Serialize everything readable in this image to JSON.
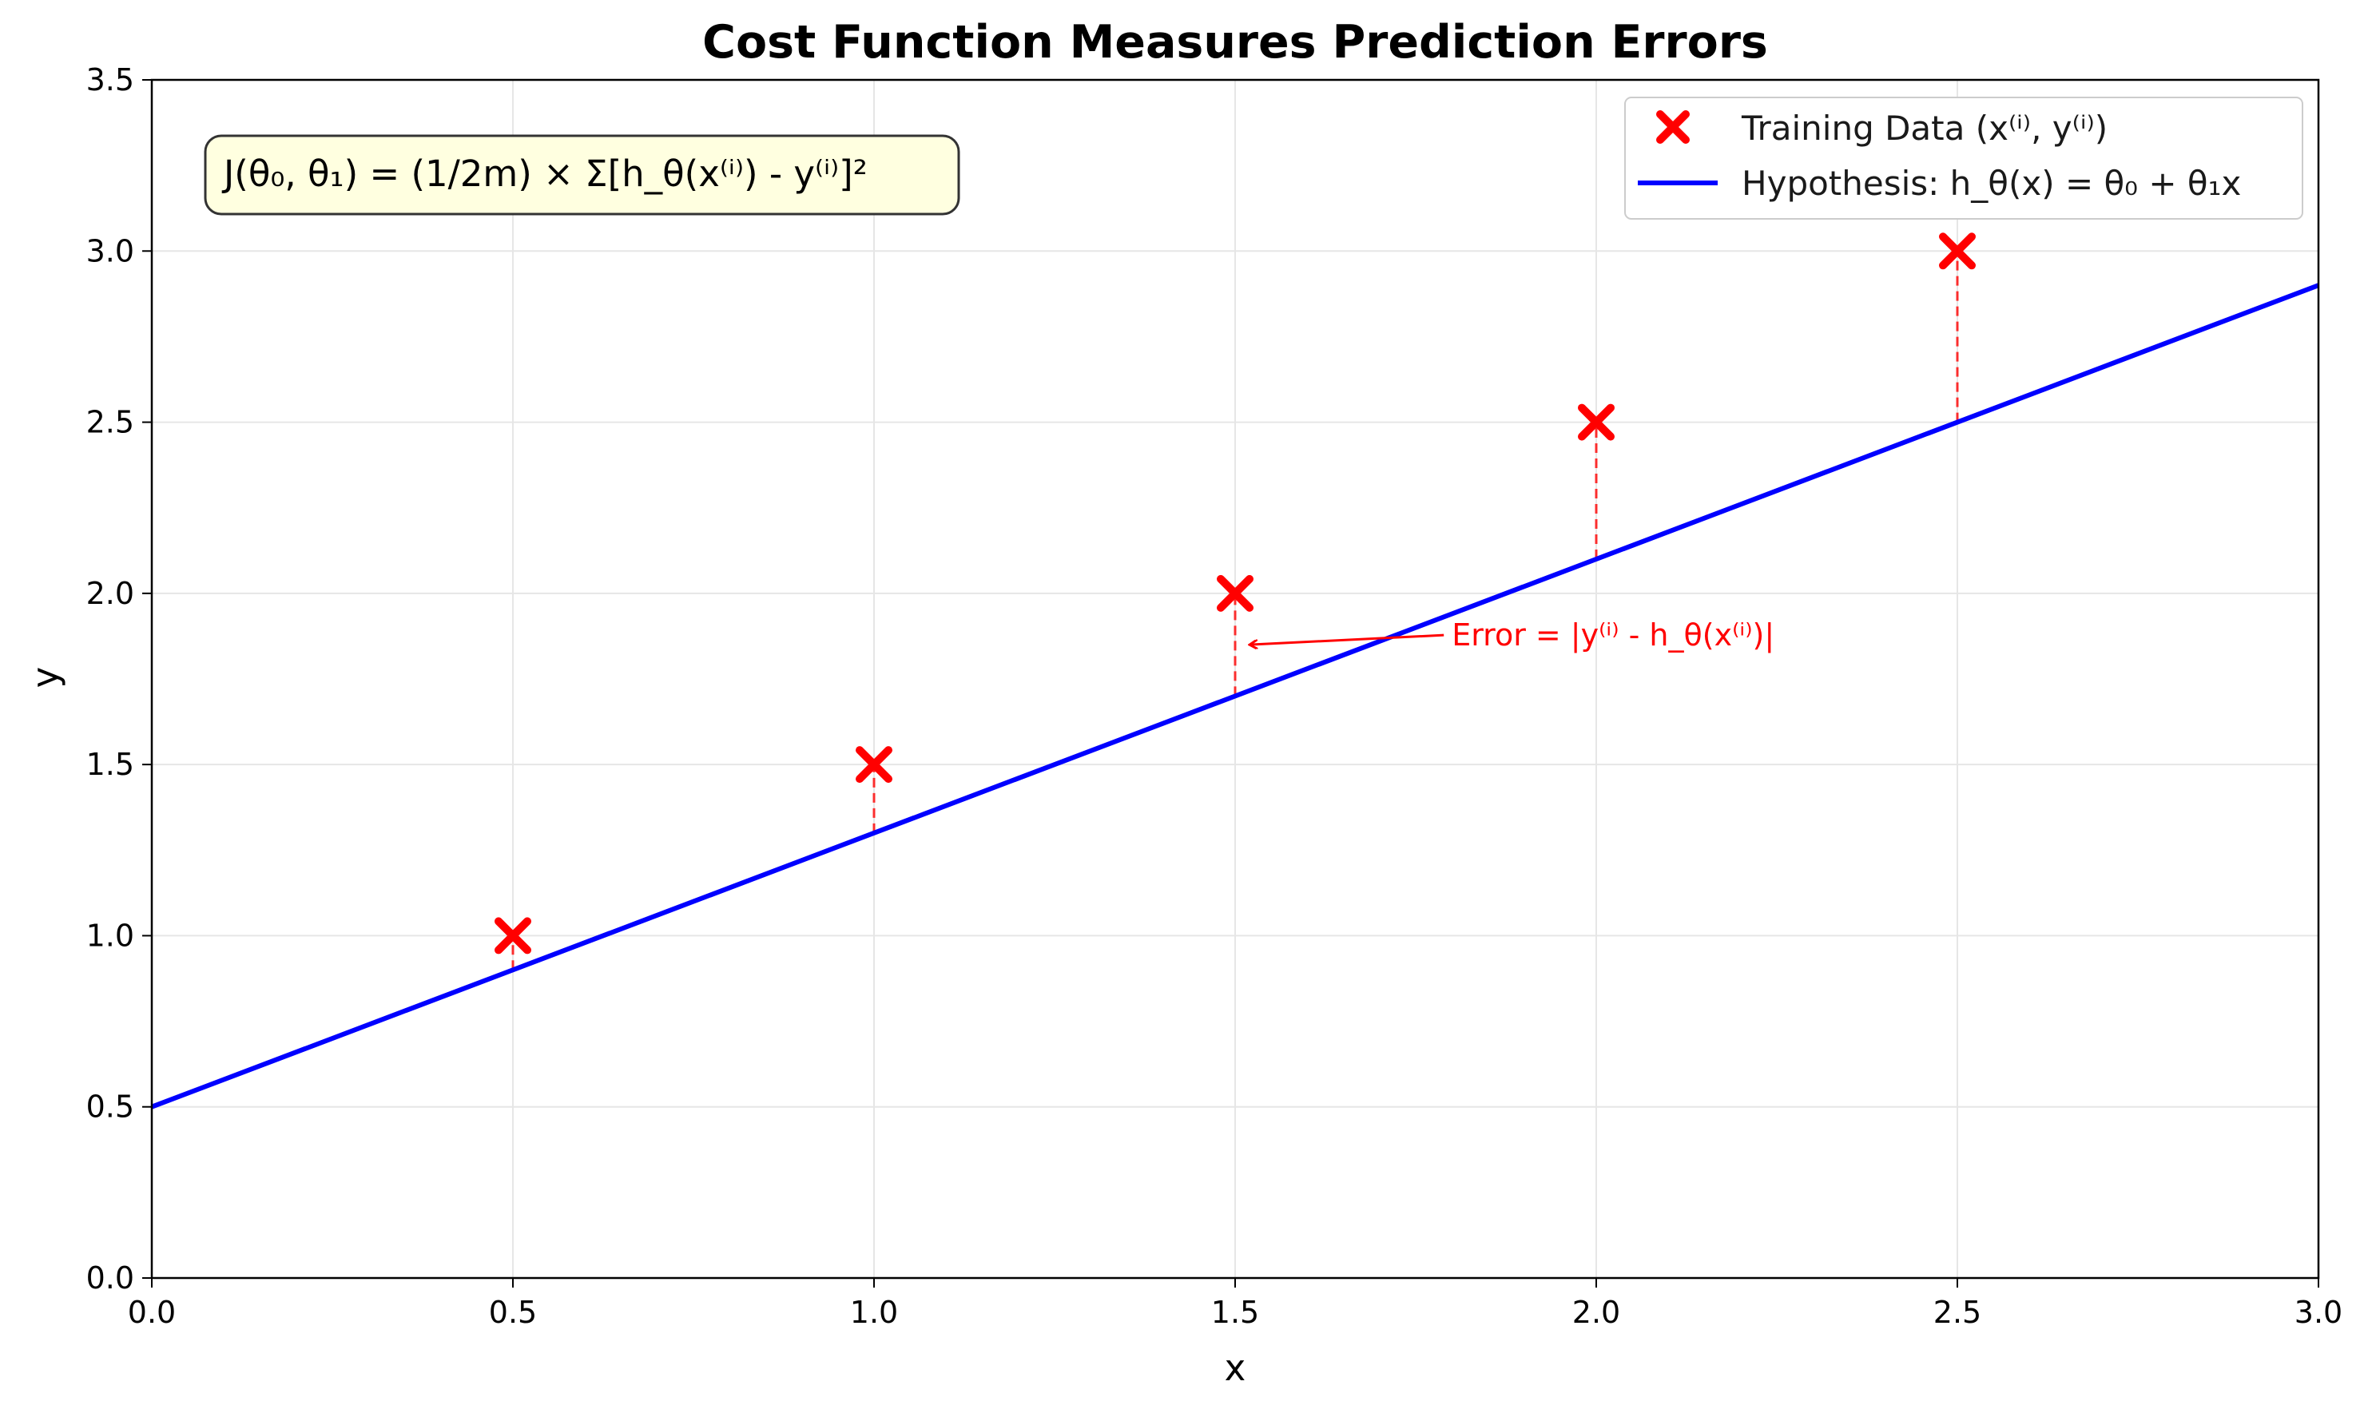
{
  "chart_data": {
    "type": "scatter",
    "title": "Cost Function Measures Prediction Errors",
    "xlabel": "x",
    "ylabel": "y",
    "xlim": [
      0,
      3
    ],
    "ylim": [
      0,
      3.5
    ],
    "x_ticks": [
      "0.0",
      "0.5",
      "1.0",
      "1.5",
      "2.0",
      "2.5",
      "3.0"
    ],
    "y_ticks": [
      "0.0",
      "0.5",
      "1.0",
      "1.5",
      "2.0",
      "2.5",
      "3.0",
      "3.5"
    ],
    "grid": true,
    "legend_position": "top-right",
    "series": [
      {
        "name": "Training Data (x⁽ⁱ⁾, y⁽ⁱ⁾)",
        "kind": "scatter",
        "marker": "x",
        "color": "#ff0000",
        "x": [
          0.5,
          1.0,
          1.5,
          2.0,
          2.5
        ],
        "y": [
          1.0,
          1.5,
          2.0,
          2.5,
          3.0
        ]
      },
      {
        "name": "Hypothesis: h_θ(x) = θ₀ + θ₁x",
        "kind": "line",
        "color": "#0000ff",
        "x": [
          0,
          3
        ],
        "y": [
          0.5,
          2.9
        ]
      }
    ],
    "error_lines": {
      "color": "#ff0000",
      "style": "dashed",
      "x": [
        0.5,
        1.0,
        1.5,
        2.0,
        2.5
      ],
      "y_from": [
        0.9,
        1.3,
        1.7,
        2.1,
        2.5
      ],
      "y_to": [
        1.0,
        1.5,
        2.0,
        2.5,
        3.0
      ]
    },
    "annotations": [
      {
        "text": "Error = |y⁽ⁱ⁾ - h_θ(x⁽ⁱ⁾)|",
        "color": "#ff0000",
        "text_x": 1.8,
        "text_y": 1.85,
        "arrow_to_x": 1.52,
        "arrow_to_y": 1.85
      }
    ],
    "formula_box": {
      "text": "J(θ₀, θ₁) = (1/2m) × Σ[h_θ(x⁽ⁱ⁾) - y⁽ⁱ⁾]²",
      "position": "top-left",
      "background": "#ffffe0"
    }
  }
}
